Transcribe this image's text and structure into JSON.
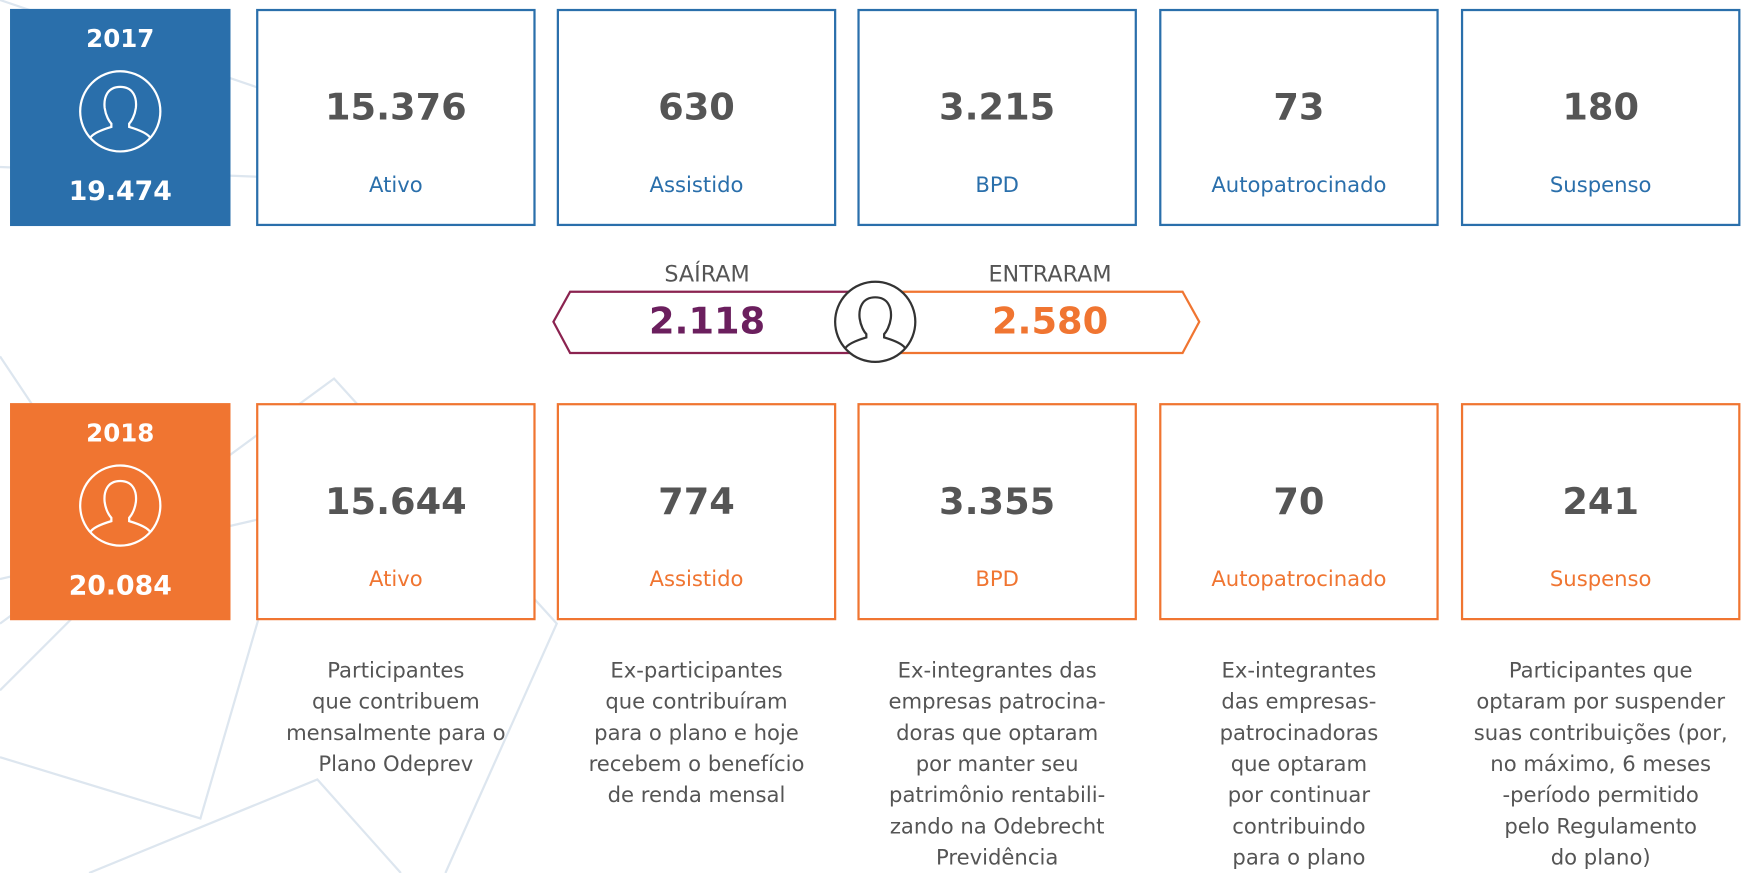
{
  "rows": [
    {
      "year": "2017",
      "total": "19.474",
      "cards": [
        {
          "value": "15.376",
          "label": "Ativo"
        },
        {
          "value": "630",
          "label": "Assistido"
        },
        {
          "value": "3.215",
          "label": "BPD"
        },
        {
          "value": "73",
          "label": "Autopatrocinado"
        },
        {
          "value": "180",
          "label": "Suspenso"
        }
      ]
    },
    {
      "year": "2018",
      "total": "20.084",
      "cards": [
        {
          "value": "15.644",
          "label": "Ativo"
        },
        {
          "value": "774",
          "label": "Assistido"
        },
        {
          "value": "3.355",
          "label": "BPD"
        },
        {
          "value": "70",
          "label": "Autopatrocinado"
        },
        {
          "value": "241",
          "label": "Suspenso"
        }
      ]
    }
  ],
  "flow": {
    "out_label": "SAÍRAM",
    "out_value": "2.118",
    "in_label": "ENTRARAM",
    "in_value": "2.580"
  },
  "descriptions": [
    [
      "Participantes",
      "que contribuem",
      "mensalmente para o",
      "Plano Odeprev"
    ],
    [
      "Ex-participantes",
      "que contribuíram",
      "para o plano e hoje",
      "recebem o benefício",
      "de renda mensal"
    ],
    [
      "Ex-integrantes das",
      "empresas patrocina-",
      "doras que optaram",
      "por manter seu",
      "patrimônio rentabili-",
      "zando na Odebrecht",
      "Previdência"
    ],
    [
      "Ex-integrantes",
      "das empresas-",
      "patrocinadoras",
      "que optaram",
      "por continuar",
      "contribuindo",
      "para o plano"
    ],
    [
      "Participantes que",
      "optaram por suspender",
      "suas contribuições (por,",
      "no máximo, 6 meses",
      "-período permitido",
      "pelo Regulamento",
      "do plano)"
    ]
  ]
}
